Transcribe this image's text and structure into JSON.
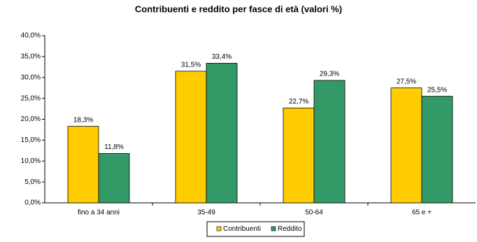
{
  "chart_data": {
    "type": "bar",
    "title": "Contribuenti e reddito per fasce di età (valori %)",
    "categories": [
      "fino a 34 anni",
      "35-49",
      "50-64",
      "65 e +"
    ],
    "series": [
      {
        "name": "Contribuenti",
        "color": "#ffcc00",
        "values": [
          18.3,
          31.5,
          22.7,
          27.5
        ],
        "value_labels": [
          "18,3%",
          "31,5%",
          "22,7%",
          "27,5%"
        ]
      },
      {
        "name": "Reddito",
        "color": "#339966",
        "values": [
          11.8,
          33.4,
          29.3,
          25.5
        ],
        "value_labels": [
          "11,8%",
          "33,4%",
          "29,3%",
          "25,5%"
        ]
      }
    ],
    "ylim": [
      0,
      40
    ],
    "yticks": [
      {
        "value": 0,
        "label": "0,0%"
      },
      {
        "value": 5,
        "label": "5,0%"
      },
      {
        "value": 10,
        "label": "10,0%"
      },
      {
        "value": 15,
        "label": "15,0%"
      },
      {
        "value": 20,
        "label": "20,0%"
      },
      {
        "value": 25,
        "label": "25,0%"
      },
      {
        "value": 30,
        "label": "30,0%"
      },
      {
        "value": 35,
        "label": "35,0%"
      },
      {
        "value": 40,
        "label": "40,0%"
      }
    ],
    "grid": false,
    "legend": "bottom"
  }
}
